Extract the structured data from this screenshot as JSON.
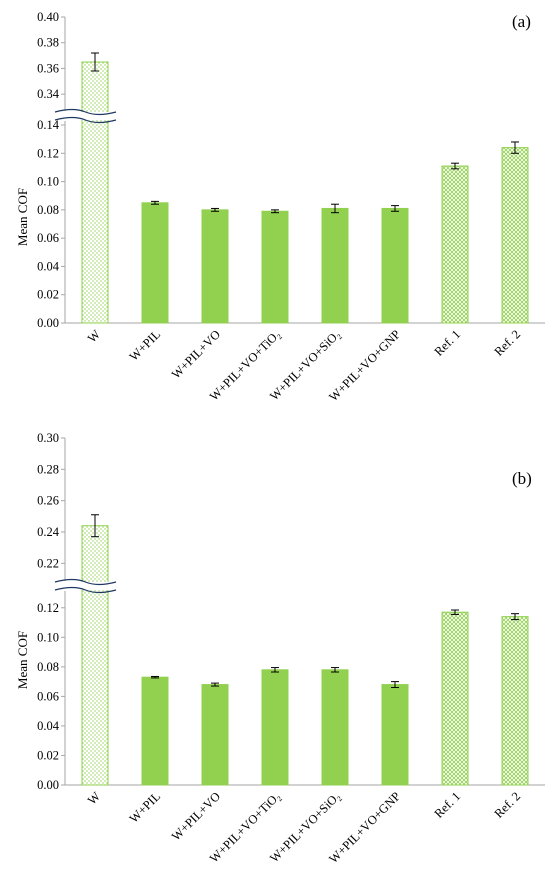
{
  "colors": {
    "solid_fill": "#92d050",
    "outline": "#92d050",
    "dot_pattern": "#92d050",
    "hatch_pattern": "#92d050",
    "error_bar": "#000000",
    "axis": "#a6a6a6"
  },
  "chart_data": [
    {
      "type": "bar",
      "panel_label": "(a)",
      "ylabel": "Mean COF",
      "categories": [
        "W",
        "W+PIL",
        "W+PIL+VO",
        "W+PIL+VO+TiO₂",
        "W+PIL+VO+SiO₂",
        "W+PIL+VO+GNP",
        "Ref. 1",
        "Ref. 2"
      ],
      "fills": [
        "dots",
        "solid",
        "solid",
        "solid",
        "solid",
        "solid",
        "hatch",
        "hatch"
      ],
      "values": [
        0.365,
        0.085,
        0.08,
        0.079,
        0.081,
        0.081,
        0.111,
        0.124
      ],
      "errors": [
        0.007,
        0.001,
        0.001,
        0.001,
        0.003,
        0.002,
        0.002,
        0.004
      ],
      "broken_axis": true,
      "ylim_lower": [
        0,
        0.14
      ],
      "ylim_upper": [
        0.33,
        0.4
      ],
      "yticks_lower": [
        "0.00",
        "0.02",
        "0.04",
        "0.06",
        "0.08",
        "0.10",
        "0.12",
        "0.14"
      ],
      "yticks_upper": [
        "0.34",
        "0.36",
        "0.38",
        "0.40"
      ],
      "grid": false,
      "legend": "none"
    },
    {
      "type": "bar",
      "panel_label": "(b)",
      "ylabel": "Mean COF",
      "categories": [
        "W",
        "W+PIL",
        "W+PIL+VO",
        "W+PIL+VO+TiO₂",
        "W+PIL+VO+SiO₂",
        "W+PIL+VO+GNP",
        "Ref. 1",
        "Ref. 2"
      ],
      "fills": [
        "dots",
        "solid",
        "solid",
        "solid",
        "solid",
        "solid",
        "hatch",
        "hatch"
      ],
      "values": [
        0.244,
        0.073,
        0.068,
        0.078,
        0.078,
        0.068,
        0.117,
        0.114
      ],
      "errors": [
        0.007,
        0.0005,
        0.001,
        0.0015,
        0.0015,
        0.002,
        0.0015,
        0.002
      ],
      "broken_axis": true,
      "ylim_lower": [
        0,
        0.13
      ],
      "ylim_upper": [
        0.21,
        0.3
      ],
      "yticks_lower": [
        "0.00",
        "0.02",
        "0.04",
        "0.06",
        "0.08",
        "0.10",
        "0.12"
      ],
      "yticks_upper": [
        "0.22",
        "0.24",
        "0.26",
        "0.28",
        "0.30"
      ],
      "grid": false,
      "legend": "none"
    }
  ]
}
